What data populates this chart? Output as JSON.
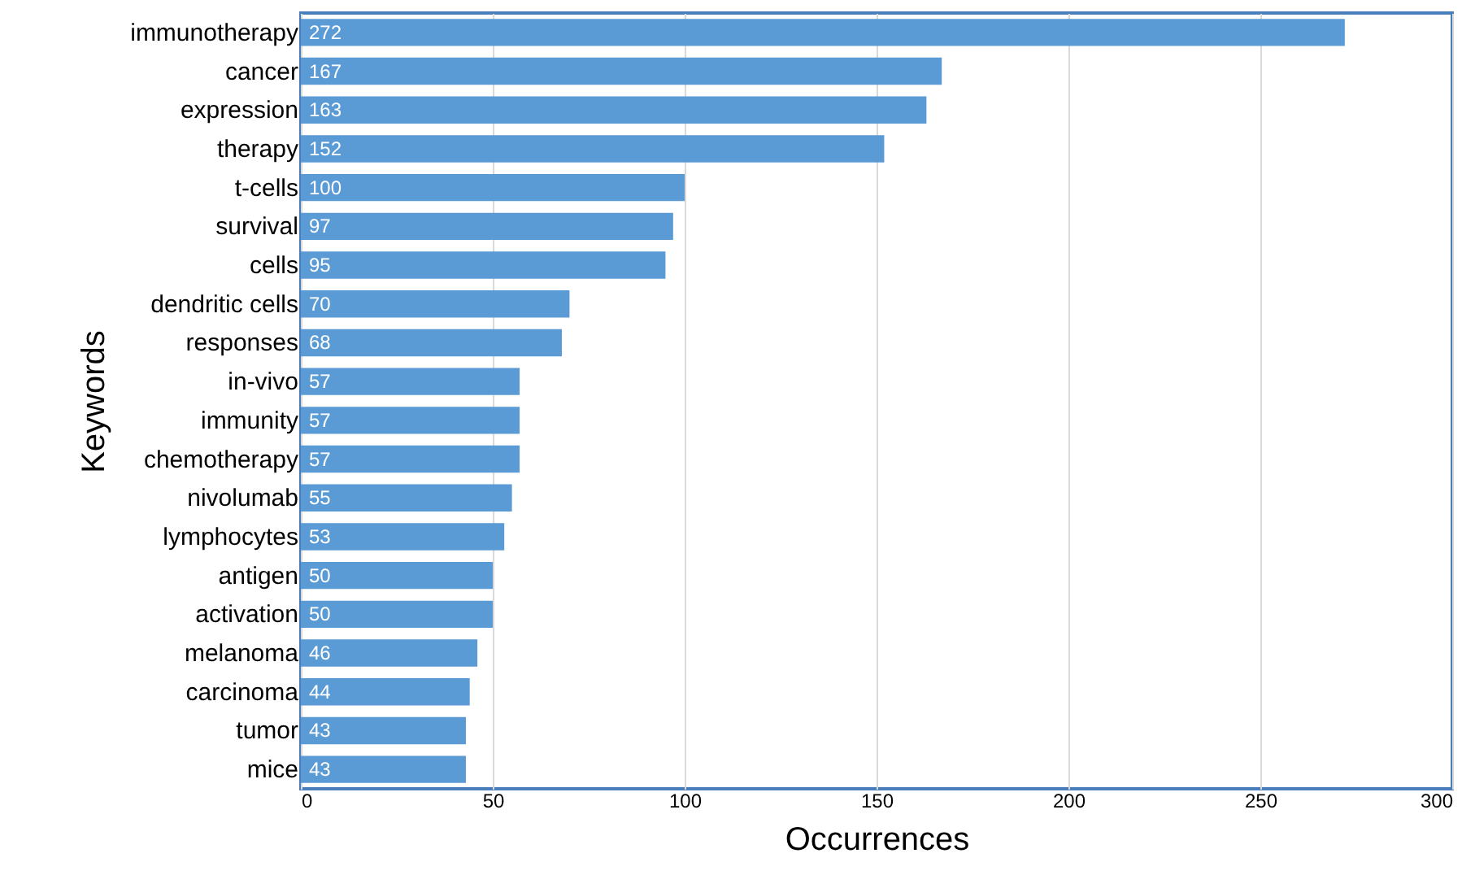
{
  "chart_data": {
    "type": "bar",
    "orientation": "horizontal",
    "xlabel": "Occurrences",
    "ylabel": "Keywords",
    "categories": [
      "immunotherapy",
      "cancer",
      "expression",
      "therapy",
      "t-cells",
      "survival",
      "cells",
      "dendritic cells",
      "responses",
      "in-vivo",
      "immunity",
      "chemotherapy",
      "nivolumab",
      "lymphocytes",
      "antigen",
      "activation",
      "melanoma",
      "carcinoma",
      "tumor",
      "mice"
    ],
    "values": [
      272,
      167,
      163,
      152,
      100,
      97,
      95,
      70,
      68,
      57,
      57,
      57,
      55,
      53,
      50,
      50,
      46,
      44,
      43,
      43
    ],
    "color": "#5b9bd5",
    "xlim": [
      0,
      300
    ],
    "xticks": [
      0,
      50,
      100,
      150,
      200,
      250,
      300
    ],
    "grid": "x",
    "data_labels": true
  }
}
